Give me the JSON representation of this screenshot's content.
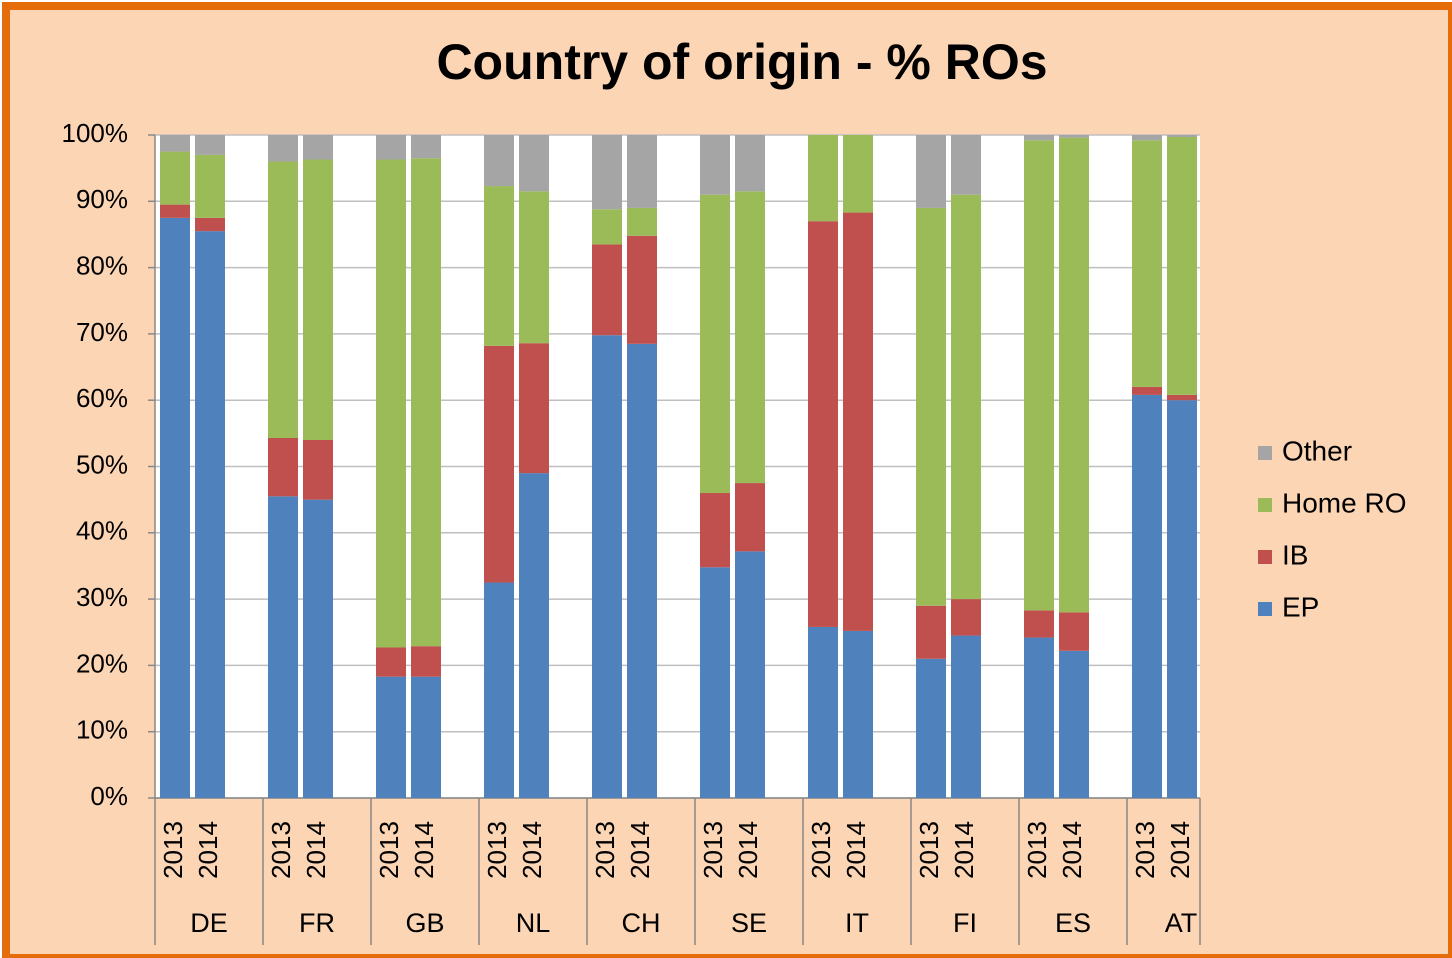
{
  "chart_data": {
    "type": "stacked_bar",
    "title": "Country of origin - % ROs",
    "groups": [
      "DE",
      "FR",
      "GB",
      "NL",
      "CH",
      "SE",
      "IT",
      "FI",
      "ES",
      "AT"
    ],
    "categories": [
      "2013",
      "2014",
      "2013",
      "2014",
      "2013",
      "2014",
      "2013",
      "2014",
      "2013",
      "2014",
      "2013",
      "2014",
      "2013",
      "2014",
      "2013",
      "2014",
      "2013",
      "2014",
      "2013",
      "2014"
    ],
    "series": [
      {
        "name": "EP",
        "color": "#4f81bd",
        "values": [
          87.5,
          85.5,
          45.5,
          45,
          18.3,
          18.3,
          32.5,
          49,
          69.8,
          68.5,
          34.8,
          37.2,
          25.8,
          25.2,
          21,
          24.5,
          24.2,
          22.2,
          60.8,
          60
        ]
      },
      {
        "name": "IB",
        "color": "#c0504d",
        "values": [
          2,
          2,
          8.8,
          9,
          4.4,
          4.6,
          35.7,
          19.6,
          13.7,
          16.3,
          11.2,
          10.3,
          61.2,
          63.1,
          8,
          5.5,
          4.1,
          5.8,
          1.2,
          0.8
        ]
      },
      {
        "name": "Home RO",
        "color": "#9bbb59",
        "values": [
          8,
          9.5,
          41.7,
          42.3,
          73.6,
          73.6,
          24.1,
          22.9,
          5.3,
          4.2,
          45,
          44,
          13,
          11.7,
          60,
          61,
          70.9,
          71.6,
          37.2,
          38.9
        ]
      },
      {
        "name": "Other",
        "color": "#a5a5a5",
        "values": [
          2.5,
          3,
          4,
          3.7,
          3.7,
          3.5,
          7.7,
          8.5,
          11.2,
          11,
          9,
          8.5,
          0,
          0,
          11,
          9,
          0.8,
          0.4,
          0.8,
          0.3
        ]
      }
    ],
    "ylim": [
      0,
      100
    ],
    "yticks": [
      {
        "value": 0,
        "label": "0%"
      },
      {
        "value": 10,
        "label": "10%"
      },
      {
        "value": 20,
        "label": "20%"
      },
      {
        "value": 30,
        "label": "30%"
      },
      {
        "value": 40,
        "label": "40%"
      },
      {
        "value": 50,
        "label": "50%"
      },
      {
        "value": 60,
        "label": "60%"
      },
      {
        "value": 70,
        "label": "70%"
      },
      {
        "value": 80,
        "label": "80%"
      },
      {
        "value": 90,
        "label": "90%"
      },
      {
        "value": 100,
        "label": "100%"
      }
    ],
    "grid": true,
    "legend": "right"
  }
}
